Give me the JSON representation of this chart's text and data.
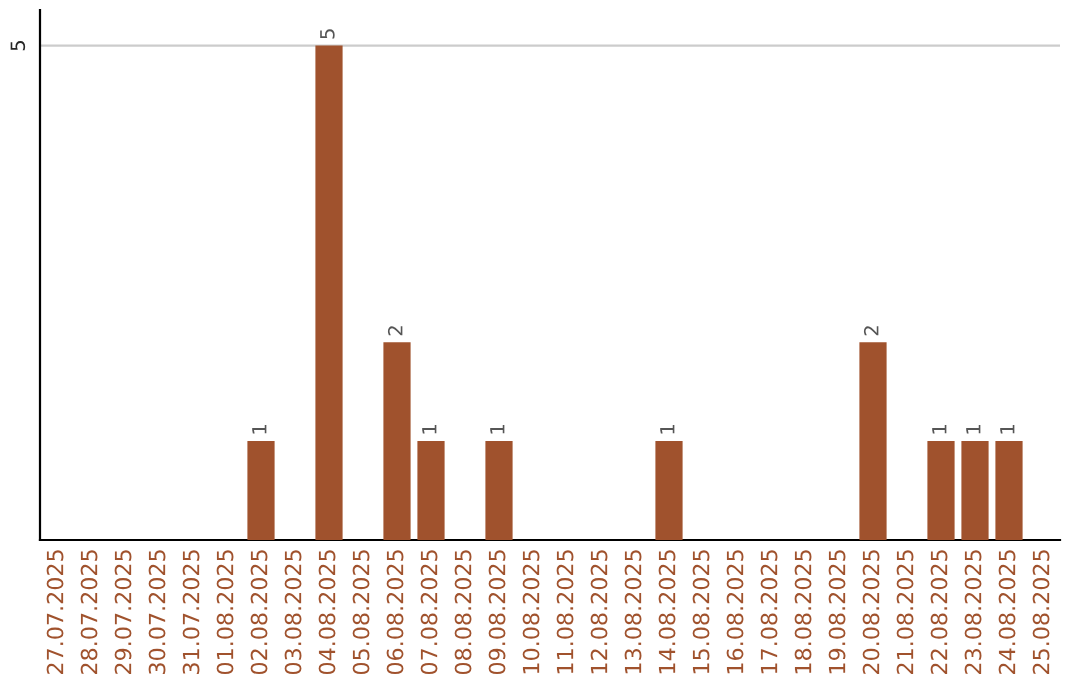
{
  "chart_data": {
    "type": "bar",
    "categories": [
      "27.07.2025",
      "28.07.2025",
      "29.07.2025",
      "30.07.2025",
      "31.07.2025",
      "01.08.2025",
      "02.08.2025",
      "03.08.2025",
      "04.08.2025",
      "05.08.2025",
      "06.08.2025",
      "07.08.2025",
      "08.08.2025",
      "09.08.2025",
      "10.08.2025",
      "11.08.2025",
      "12.08.2025",
      "13.08.2025",
      "14.08.2025",
      "15.08.2025",
      "16.08.2025",
      "17.08.2025",
      "18.08.2025",
      "19.08.2025",
      "20.08.2025",
      "21.08.2025",
      "22.08.2025",
      "23.08.2025",
      "24.08.2025",
      "25.08.2025"
    ],
    "values": [
      0,
      0,
      0,
      0,
      0,
      0,
      1,
      0,
      5,
      0,
      2,
      1,
      0,
      1,
      0,
      0,
      0,
      0,
      1,
      0,
      0,
      0,
      0,
      0,
      2,
      0,
      1,
      1,
      1,
      0
    ],
    "value_labels": [
      null,
      null,
      null,
      null,
      null,
      null,
      "1",
      null,
      "5",
      null,
      "2",
      "1",
      null,
      "1",
      null,
      null,
      null,
      null,
      "1",
      null,
      null,
      null,
      null,
      null,
      "2",
      null,
      "1",
      "1",
      "1",
      null
    ],
    "color": "#a0522d",
    "ylim": [
      0,
      5.36
    ],
    "yticks": [
      5
    ],
    "grid": "y"
  }
}
